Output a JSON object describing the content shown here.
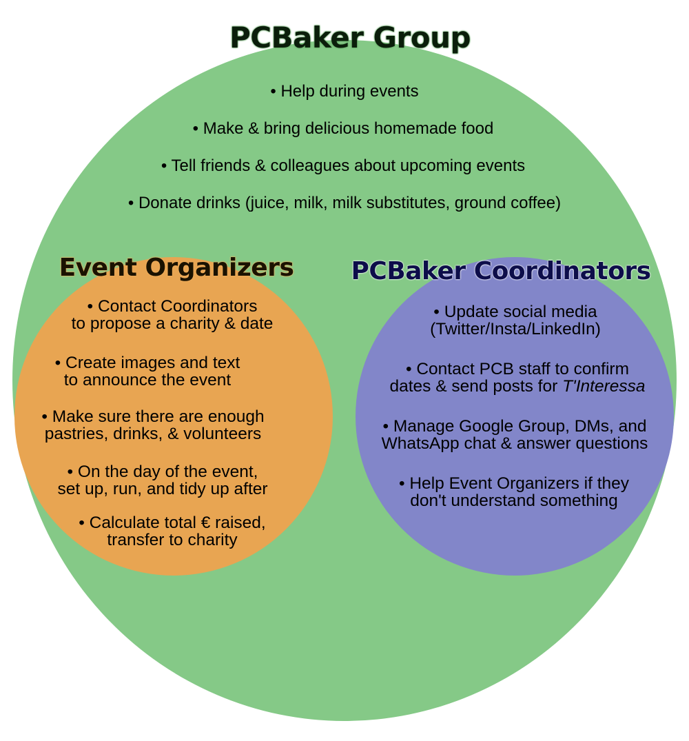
{
  "group": {
    "title": "PCBaker Group",
    "items": [
      "• Help during events",
      "• Make & bring delicious homemade food",
      "• Tell friends & colleagues about upcoming events",
      "• Donate drinks (juice, milk, milk substitutes, ground coffee)"
    ],
    "color": "#85c987"
  },
  "organizers": {
    "title": "Event Organizers",
    "items": [
      "• Contact Coordinators\nto propose a charity & date",
      "• Create images and text\nto announce the event",
      "• Make sure there are enough\npastries, drinks, & volunteers",
      "• On the day of the event,\nset up, run, and tidy up after",
      "• Calculate total € raised,\ntransfer to charity"
    ],
    "color": "#e8a552"
  },
  "coordinators": {
    "title": "PCBaker Coordinators",
    "items": [
      "• Update social media\n(Twitter/Insta/LinkedIn)",
      "• Contact PCB staff to confirm\ndates & send posts for ",
      "• Manage Google Group, DMs, and\nWhatsApp chat & answer questions",
      "• Help Event Organizers if they\ndon't understand something"
    ],
    "italic_term": "T'Interessa",
    "color": "#8286c9"
  }
}
